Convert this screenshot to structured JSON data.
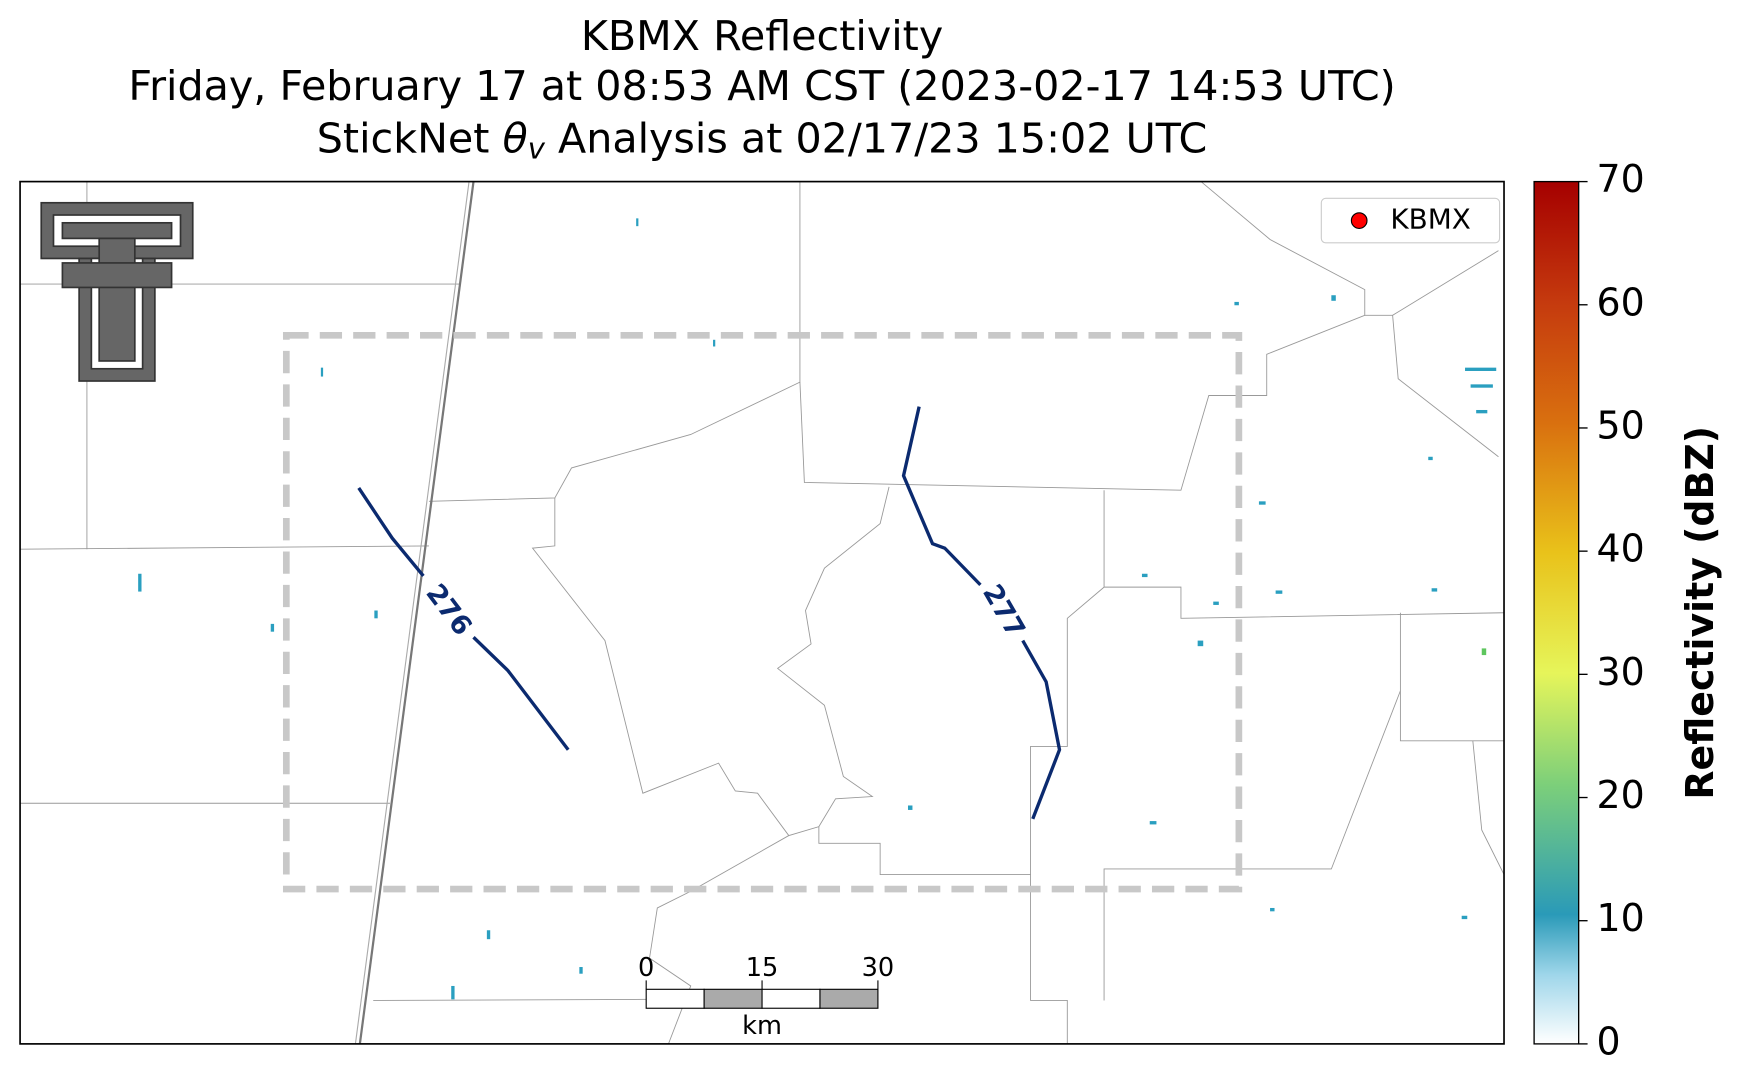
{
  "title": {
    "line1": "KBMX Reflectivity",
    "line2": "Friday, February 17 at 08:53 AM CST (2023-02-17 14:53 UTC)",
    "line3": {
      "before": "StickNet ",
      "symbol": "θ",
      "subscript": "v",
      "after": " Analysis at 02/17/23 15:02 UTC"
    }
  },
  "legend": {
    "label": "KBMX",
    "color": "#ff0000"
  },
  "contours": [
    {
      "level": 276,
      "color": "#0b2a6f"
    },
    {
      "level": 277,
      "color": "#0b2a6f"
    }
  ],
  "scale_bar": {
    "ticks": [
      0,
      15,
      30
    ],
    "unit": "km"
  },
  "colorbar": {
    "label": "Reflectivity (dBZ)",
    "lim": [
      0,
      70
    ],
    "ticks": [
      0,
      10,
      20,
      30,
      40,
      50,
      60,
      70
    ]
  }
}
